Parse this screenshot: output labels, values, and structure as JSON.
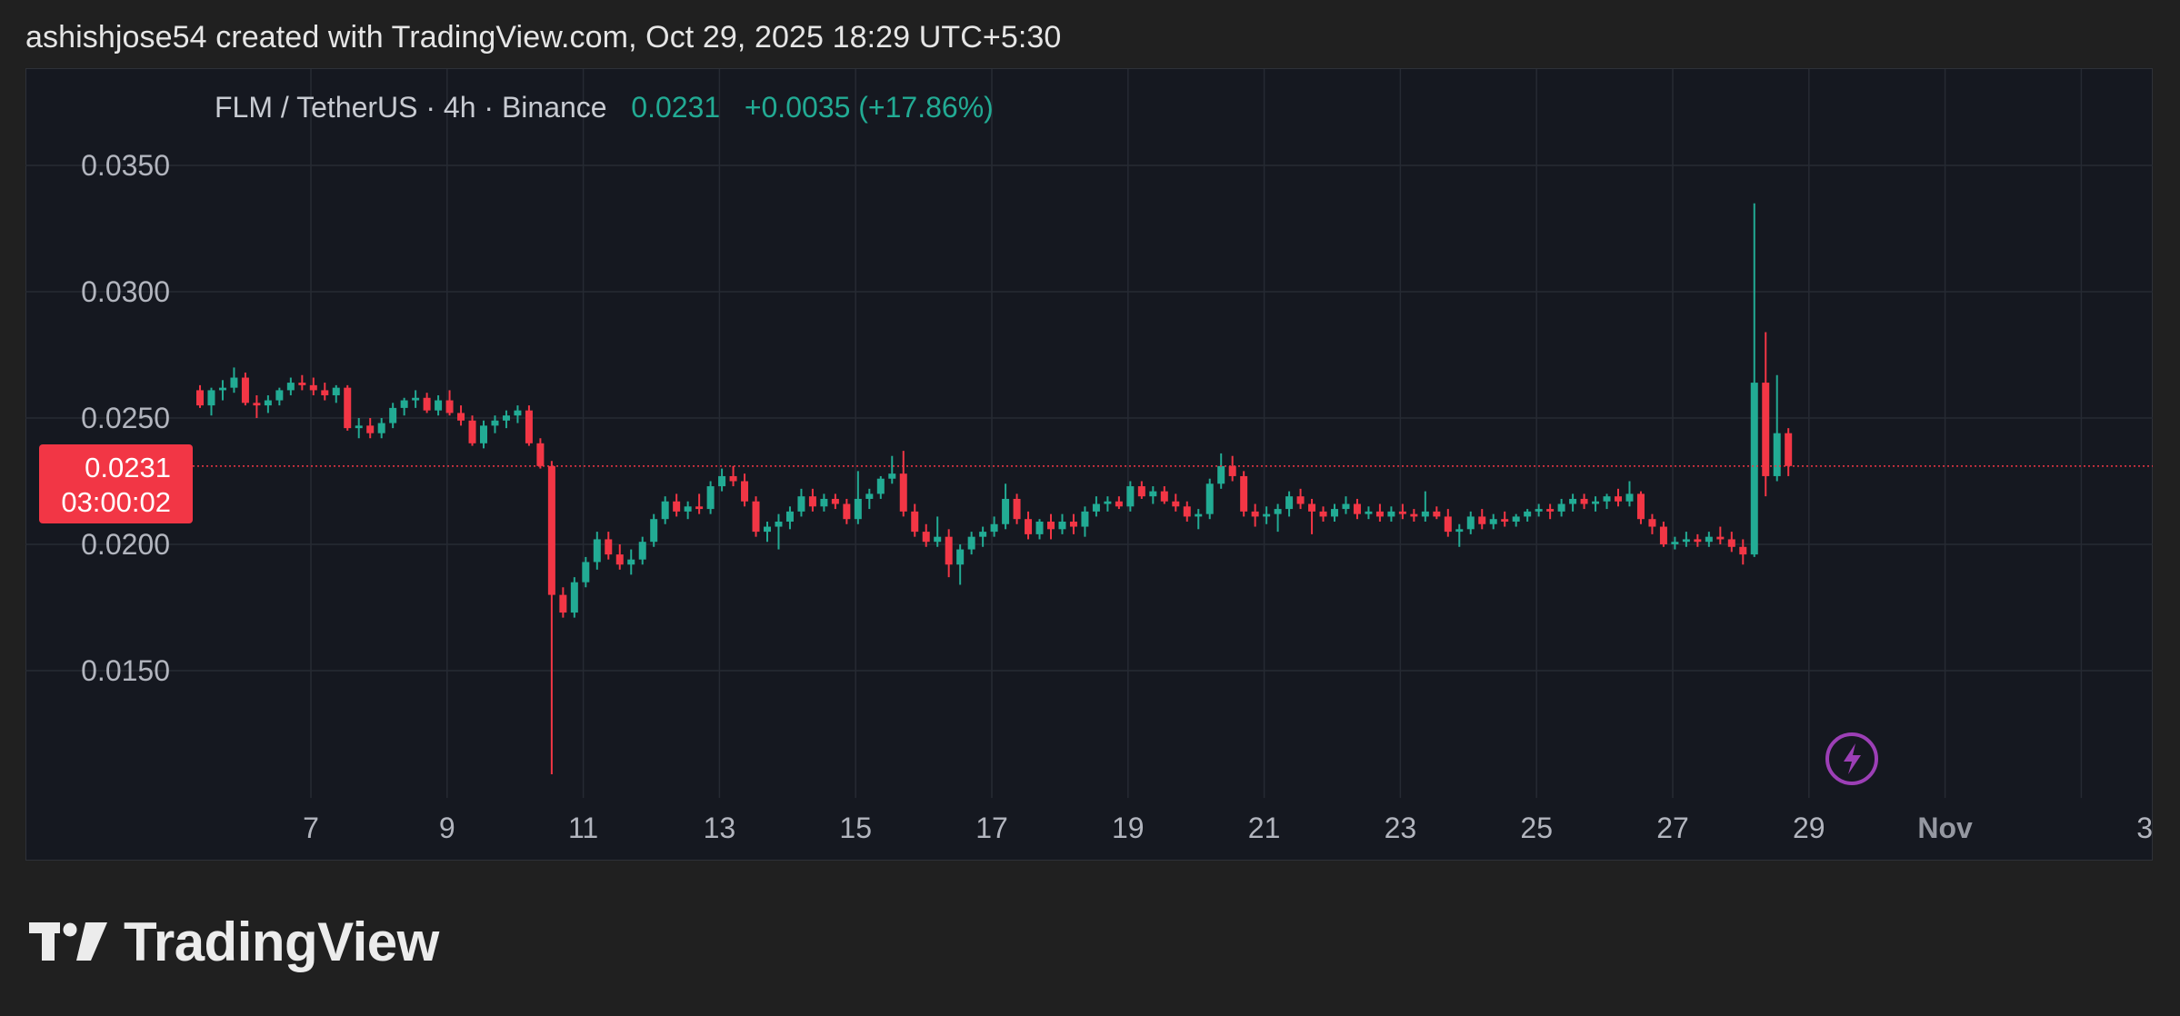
{
  "header": {
    "attribution": "ashishjose54 created with TradingView.com, Oct 29, 2025 18:29 UTC+5:30"
  },
  "legend": {
    "symbol": "FLM / TetherUS · 4h · Binance",
    "last": "0.0231",
    "change": "+0.0035 (+17.86%)"
  },
  "price_label": {
    "price": "0.0231",
    "countdown": "03:00:02"
  },
  "branding": {
    "name": "TradingView"
  },
  "icons": {
    "event": "lightning-icon",
    "logo": "tradingview-logo-icon"
  },
  "colors": {
    "up": "#22ab94",
    "down": "#f23645",
    "background": "#151820",
    "event": "#9c3fb6"
  },
  "chart_data": {
    "type": "candlestick",
    "title": "FLM / TetherUS · 4h · Binance",
    "interval": "4h",
    "y_ticks": [
      "0.0350",
      "0.0300",
      "0.0250",
      "0.0200",
      "0.0150"
    ],
    "x_ticks": [
      "7",
      "9",
      "11",
      "13",
      "15",
      "17",
      "19",
      "21",
      "23",
      "25",
      "27",
      "29",
      "Nov",
      "3"
    ],
    "ylim": [
      0.0107,
      0.0378
    ],
    "grid": true,
    "last_price_line": 0.0231,
    "candles": [
      [
        0.0261,
        0.0263,
        0.0254,
        0.0255
      ],
      [
        0.0255,
        0.0262,
        0.0251,
        0.0261
      ],
      [
        0.0261,
        0.0265,
        0.0257,
        0.0262
      ],
      [
        0.0262,
        0.027,
        0.026,
        0.0266
      ],
      [
        0.0266,
        0.0268,
        0.0255,
        0.0256
      ],
      [
        0.0256,
        0.0259,
        0.025,
        0.0255
      ],
      [
        0.0255,
        0.0259,
        0.0252,
        0.0257
      ],
      [
        0.0257,
        0.0262,
        0.0255,
        0.0261
      ],
      [
        0.0261,
        0.0266,
        0.0259,
        0.0264
      ],
      [
        0.0264,
        0.0267,
        0.0261,
        0.0263
      ],
      [
        0.0263,
        0.0266,
        0.0259,
        0.0261
      ],
      [
        0.0261,
        0.0264,
        0.0257,
        0.0259
      ],
      [
        0.0259,
        0.0263,
        0.0256,
        0.0262
      ],
      [
        0.0262,
        0.0263,
        0.0245,
        0.0246
      ],
      [
        0.0246,
        0.025,
        0.0242,
        0.0247
      ],
      [
        0.0247,
        0.025,
        0.0242,
        0.0244
      ],
      [
        0.0244,
        0.025,
        0.0242,
        0.0248
      ],
      [
        0.0248,
        0.0256,
        0.0246,
        0.0254
      ],
      [
        0.0254,
        0.0258,
        0.0251,
        0.0257
      ],
      [
        0.0257,
        0.0261,
        0.0254,
        0.0258
      ],
      [
        0.0258,
        0.026,
        0.0252,
        0.0253
      ],
      [
        0.0253,
        0.0259,
        0.0251,
        0.0257
      ],
      [
        0.0257,
        0.0261,
        0.0251,
        0.0252
      ],
      [
        0.0252,
        0.0255,
        0.0247,
        0.0249
      ],
      [
        0.0249,
        0.0251,
        0.0239,
        0.024
      ],
      [
        0.024,
        0.0249,
        0.0238,
        0.0247
      ],
      [
        0.0247,
        0.0251,
        0.0244,
        0.0249
      ],
      [
        0.0249,
        0.0253,
        0.0246,
        0.0251
      ],
      [
        0.0251,
        0.0255,
        0.0248,
        0.0253
      ],
      [
        0.0253,
        0.0255,
        0.0239,
        0.024
      ],
      [
        0.024,
        0.0242,
        0.023,
        0.0231
      ],
      [
        0.0231,
        0.0233,
        0.0109,
        0.018
      ],
      [
        0.018,
        0.0183,
        0.0171,
        0.0173
      ],
      [
        0.0173,
        0.0187,
        0.0171,
        0.0185
      ],
      [
        0.0185,
        0.0195,
        0.0183,
        0.0193
      ],
      [
        0.0193,
        0.0205,
        0.019,
        0.0202
      ],
      [
        0.0202,
        0.0205,
        0.0194,
        0.0196
      ],
      [
        0.0196,
        0.02,
        0.019,
        0.0192
      ],
      [
        0.0192,
        0.0198,
        0.0188,
        0.0194
      ],
      [
        0.0194,
        0.0203,
        0.0192,
        0.0201
      ],
      [
        0.0201,
        0.0212,
        0.0199,
        0.021
      ],
      [
        0.021,
        0.0219,
        0.0208,
        0.0217
      ],
      [
        0.0217,
        0.022,
        0.0211,
        0.0213
      ],
      [
        0.0213,
        0.0217,
        0.021,
        0.0215
      ],
      [
        0.0215,
        0.022,
        0.0212,
        0.0214
      ],
      [
        0.0214,
        0.0225,
        0.0212,
        0.0223
      ],
      [
        0.0223,
        0.023,
        0.0221,
        0.0227
      ],
      [
        0.0227,
        0.0231,
        0.0223,
        0.0225
      ],
      [
        0.0225,
        0.0228,
        0.0215,
        0.0217
      ],
      [
        0.0217,
        0.0219,
        0.0203,
        0.0205
      ],
      [
        0.0205,
        0.0209,
        0.0201,
        0.0207
      ],
      [
        0.0207,
        0.0212,
        0.0198,
        0.0209
      ],
      [
        0.0209,
        0.0215,
        0.0206,
        0.0213
      ],
      [
        0.0213,
        0.0222,
        0.0211,
        0.0219
      ],
      [
        0.0219,
        0.0222,
        0.0213,
        0.0215
      ],
      [
        0.0215,
        0.022,
        0.0213,
        0.0218
      ],
      [
        0.0218,
        0.022,
        0.0214,
        0.0216
      ],
      [
        0.0216,
        0.0218,
        0.0208,
        0.021
      ],
      [
        0.021,
        0.0229,
        0.0208,
        0.0218
      ],
      [
        0.0218,
        0.0222,
        0.0214,
        0.022
      ],
      [
        0.022,
        0.0227,
        0.0218,
        0.0226
      ],
      [
        0.0226,
        0.0235,
        0.0224,
        0.0228
      ],
      [
        0.0228,
        0.0237,
        0.0211,
        0.0213
      ],
      [
        0.0213,
        0.0216,
        0.0203,
        0.0205
      ],
      [
        0.0205,
        0.0208,
        0.0199,
        0.0201
      ],
      [
        0.0201,
        0.0211,
        0.0199,
        0.0203
      ],
      [
        0.0203,
        0.0206,
        0.0187,
        0.0192
      ],
      [
        0.0192,
        0.02,
        0.0184,
        0.0198
      ],
      [
        0.0198,
        0.0205,
        0.0196,
        0.0203
      ],
      [
        0.0203,
        0.0207,
        0.0199,
        0.0205
      ],
      [
        0.0205,
        0.0211,
        0.0203,
        0.0208
      ],
      [
        0.0208,
        0.0224,
        0.0206,
        0.0218
      ],
      [
        0.0218,
        0.022,
        0.0208,
        0.021
      ],
      [
        0.021,
        0.0213,
        0.0202,
        0.0204
      ],
      [
        0.0204,
        0.021,
        0.0202,
        0.0209
      ],
      [
        0.0209,
        0.0212,
        0.0202,
        0.0206
      ],
      [
        0.0206,
        0.0212,
        0.0204,
        0.0209
      ],
      [
        0.0209,
        0.0212,
        0.0204,
        0.0207
      ],
      [
        0.0207,
        0.0215,
        0.0203,
        0.0213
      ],
      [
        0.0213,
        0.0219,
        0.0211,
        0.0216
      ],
      [
        0.0216,
        0.0219,
        0.0213,
        0.0217
      ],
      [
        0.0217,
        0.0219,
        0.0214,
        0.0215
      ],
      [
        0.0215,
        0.0225,
        0.0213,
        0.0223
      ],
      [
        0.0223,
        0.0225,
        0.0218,
        0.0219
      ],
      [
        0.0219,
        0.0223,
        0.0216,
        0.0221
      ],
      [
        0.0221,
        0.0223,
        0.0216,
        0.0217
      ],
      [
        0.0217,
        0.022,
        0.0213,
        0.0215
      ],
      [
        0.0215,
        0.0217,
        0.0209,
        0.0211
      ],
      [
        0.0211,
        0.0214,
        0.0206,
        0.0212
      ],
      [
        0.0212,
        0.0226,
        0.021,
        0.0224
      ],
      [
        0.0224,
        0.0236,
        0.0222,
        0.0231
      ],
      [
        0.0231,
        0.0235,
        0.0225,
        0.0227
      ],
      [
        0.0227,
        0.0229,
        0.0211,
        0.0213
      ],
      [
        0.0213,
        0.0216,
        0.0207,
        0.0211
      ],
      [
        0.0211,
        0.0215,
        0.0208,
        0.0212
      ],
      [
        0.0212,
        0.0216,
        0.0205,
        0.0214
      ],
      [
        0.0214,
        0.0221,
        0.0211,
        0.0219
      ],
      [
        0.0219,
        0.0222,
        0.0214,
        0.0216
      ],
      [
        0.0216,
        0.0218,
        0.0204,
        0.0213
      ],
      [
        0.0213,
        0.0215,
        0.0209,
        0.0211
      ],
      [
        0.0211,
        0.0216,
        0.0209,
        0.0214
      ],
      [
        0.0214,
        0.0219,
        0.0212,
        0.0216
      ],
      [
        0.0216,
        0.0218,
        0.021,
        0.0212
      ],
      [
        0.0212,
        0.0215,
        0.021,
        0.0213
      ],
      [
        0.0213,
        0.0216,
        0.0209,
        0.0211
      ],
      [
        0.0211,
        0.0215,
        0.0209,
        0.0213
      ],
      [
        0.0213,
        0.0216,
        0.021,
        0.0212
      ],
      [
        0.0212,
        0.0214,
        0.0209,
        0.0211
      ],
      [
        0.0211,
        0.0221,
        0.0209,
        0.0213
      ],
      [
        0.0213,
        0.0215,
        0.021,
        0.0211
      ],
      [
        0.0211,
        0.0214,
        0.0203,
        0.0205
      ],
      [
        0.0205,
        0.0208,
        0.0199,
        0.0206
      ],
      [
        0.0206,
        0.0213,
        0.0204,
        0.0211
      ],
      [
        0.0211,
        0.0214,
        0.0206,
        0.0208
      ],
      [
        0.0208,
        0.0212,
        0.0206,
        0.021
      ],
      [
        0.021,
        0.0213,
        0.0207,
        0.0209
      ],
      [
        0.0209,
        0.0212,
        0.0207,
        0.0211
      ],
      [
        0.0211,
        0.0214,
        0.0209,
        0.0213
      ],
      [
        0.0213,
        0.0216,
        0.0211,
        0.0214
      ],
      [
        0.0214,
        0.0216,
        0.021,
        0.0213
      ],
      [
        0.0213,
        0.0218,
        0.0211,
        0.0216
      ],
      [
        0.0216,
        0.022,
        0.0213,
        0.0218
      ],
      [
        0.0218,
        0.022,
        0.0214,
        0.0216
      ],
      [
        0.0216,
        0.0219,
        0.0213,
        0.0217
      ],
      [
        0.0217,
        0.022,
        0.0214,
        0.0219
      ],
      [
        0.0219,
        0.0222,
        0.0215,
        0.0217
      ],
      [
        0.0217,
        0.0225,
        0.0215,
        0.022
      ],
      [
        0.022,
        0.0221,
        0.0208,
        0.021
      ],
      [
        0.021,
        0.0212,
        0.0204,
        0.0207
      ],
      [
        0.0207,
        0.0209,
        0.0199,
        0.02
      ],
      [
        0.02,
        0.0203,
        0.0198,
        0.0201
      ],
      [
        0.0201,
        0.0205,
        0.0199,
        0.0202
      ],
      [
        0.0202,
        0.0204,
        0.0199,
        0.0201
      ],
      [
        0.0201,
        0.0205,
        0.0199,
        0.0203
      ],
      [
        0.0203,
        0.0207,
        0.02,
        0.0202
      ],
      [
        0.0202,
        0.0205,
        0.0197,
        0.0199
      ],
      [
        0.0199,
        0.0202,
        0.0192,
        0.0196
      ],
      [
        0.0196,
        0.0335,
        0.0195,
        0.0264
      ],
      [
        0.0264,
        0.0284,
        0.0219,
        0.0227
      ],
      [
        0.0227,
        0.0267,
        0.0225,
        0.0244
      ],
      [
        0.0244,
        0.0246,
        0.0227,
        0.0231
      ]
    ]
  }
}
